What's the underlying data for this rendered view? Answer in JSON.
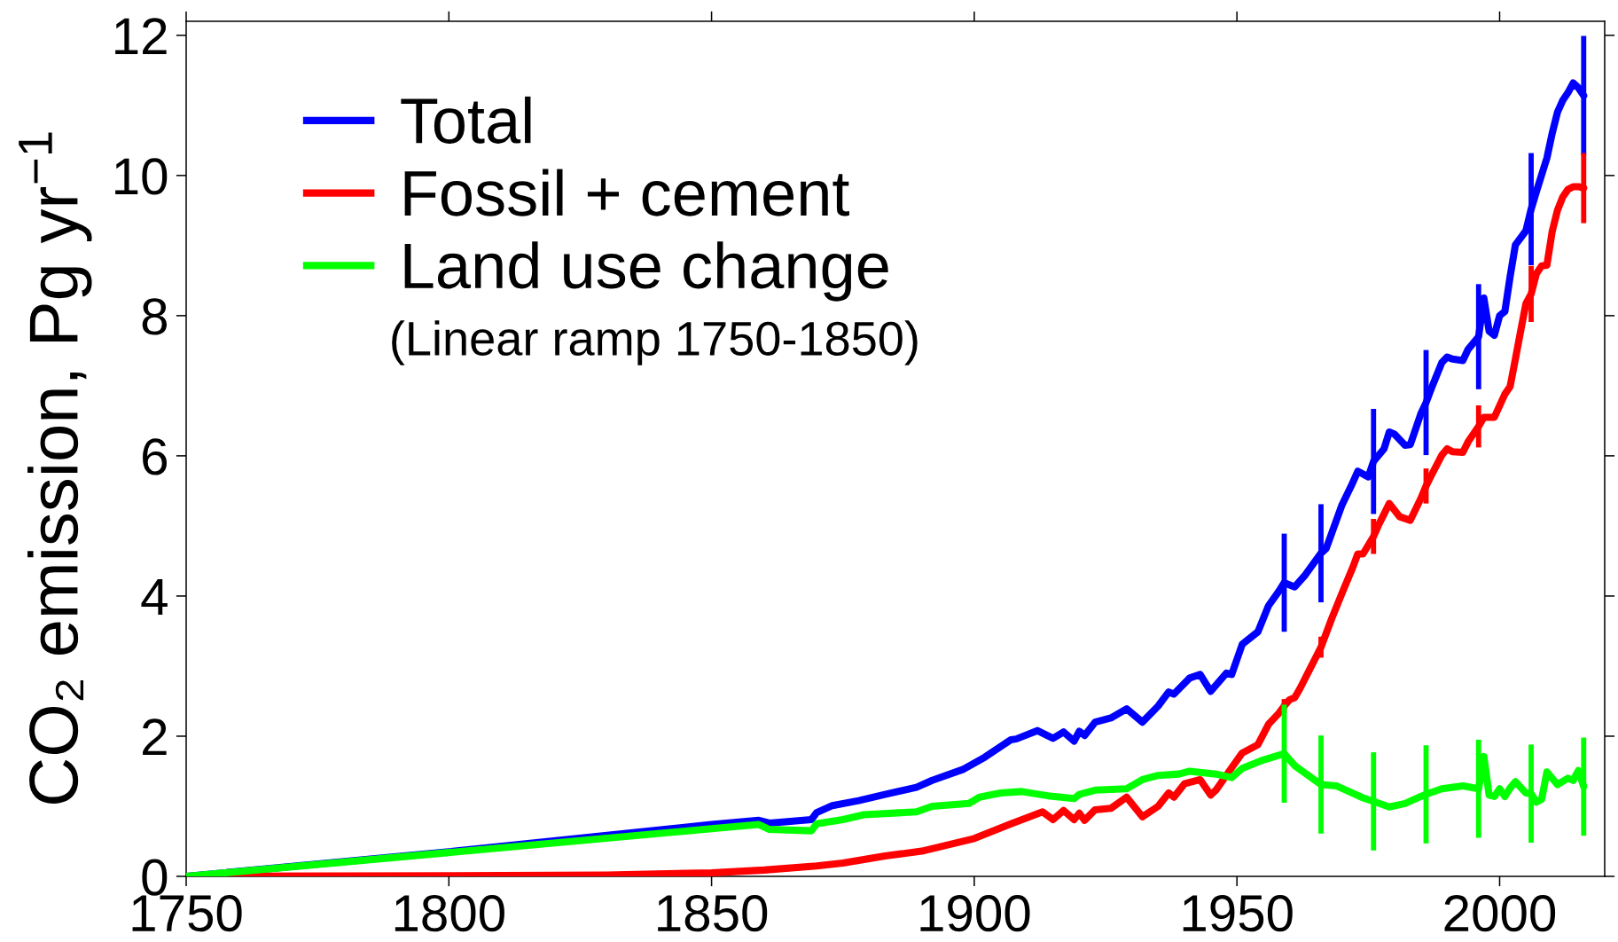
{
  "chart_data": {
    "type": "line",
    "ylabel": "CO₂ emission, Pg yr$^{−1}$",
    "annotations": [
      "(Linear ramp 1750-1850)"
    ],
    "xlim": [
      1750,
      2020
    ],
    "ylim": [
      0,
      12.2
    ],
    "xticks": [
      1750,
      1800,
      1850,
      1900,
      1950,
      2000
    ],
    "yticks": [
      0,
      2,
      4,
      6,
      8,
      10,
      12
    ],
    "legend": "top left",
    "series": [
      {
        "name": "Total",
        "color": "#0000ff",
        "x": [
          1750,
          1800,
          1850,
          1859,
          1861,
          1869,
          1870,
          1873,
          1878,
          1883,
          1889,
          1892,
          1898,
          1902,
          1907,
          1908,
          1912,
          1915,
          1917,
          1919,
          1920,
          1921,
          1923,
          1926,
          1929,
          1932,
          1935,
          1937,
          1938,
          1941,
          1943,
          1945,
          1948,
          1949,
          1951,
          1954,
          1956,
          1958,
          1959,
          1961,
          1963,
          1966,
          1967,
          1970,
          1972,
          1973,
          1975,
          1976,
          1978,
          1979,
          1980,
          1982,
          1983,
          1985,
          1986,
          1987,
          1989,
          1990,
          1991,
          1993,
          1994,
          1996,
          1997,
          1998,
          1999,
          2000,
          2001,
          2002,
          2003,
          2005,
          2006,
          2007,
          2009,
          2010,
          2011,
          2012,
          2013,
          2014,
          2015,
          2016
        ],
        "values": [
          0,
          0.35,
          0.74,
          0.8,
          0.76,
          0.81,
          0.91,
          1.01,
          1.08,
          1.17,
          1.27,
          1.37,
          1.53,
          1.7,
          1.95,
          1.96,
          2.08,
          1.97,
          2.06,
          1.93,
          2.07,
          2.01,
          2.2,
          2.26,
          2.39,
          2.2,
          2.43,
          2.63,
          2.6,
          2.83,
          2.88,
          2.64,
          2.9,
          2.88,
          3.31,
          3.49,
          3.86,
          4.07,
          4.19,
          4.13,
          4.3,
          4.61,
          4.68,
          5.3,
          5.61,
          5.78,
          5.7,
          5.92,
          6.1,
          6.34,
          6.31,
          6.15,
          6.16,
          6.6,
          6.76,
          6.96,
          7.33,
          7.41,
          7.38,
          7.36,
          7.52,
          7.7,
          8.25,
          7.78,
          7.72,
          8.0,
          8.06,
          8.56,
          9.01,
          9.21,
          9.52,
          9.77,
          10.25,
          10.6,
          10.9,
          11.07,
          11.18,
          11.32,
          11.25,
          11.14
        ],
        "errors": [
          null,
          null,
          null,
          null,
          null,
          null,
          null,
          null,
          null,
          null,
          null,
          null,
          null,
          null,
          null,
          null,
          null,
          null,
          null,
          null,
          null,
          null,
          null,
          null,
          null,
          null,
          null,
          null,
          null,
          null,
          null,
          null,
          null,
          null,
          null,
          null,
          null,
          null,
          0.7,
          null,
          null,
          0.7,
          null,
          null,
          null,
          null,
          null,
          0.75,
          null,
          null,
          null,
          null,
          null,
          null,
          0.75,
          null,
          null,
          null,
          null,
          null,
          null,
          0.75,
          null,
          null,
          null,
          null,
          null,
          null,
          null,
          null,
          0.8,
          null,
          null,
          null,
          null,
          null,
          null,
          null,
          null,
          0.85
        ]
      },
      {
        "name": "Fossil + cement",
        "color": "#ff0000",
        "x": [
          1750,
          1800,
          1830,
          1850,
          1860,
          1870,
          1875,
          1883,
          1890,
          1900,
          1907,
          1913,
          1915,
          1917,
          1919,
          1920,
          1921,
          1923,
          1926,
          1929,
          1932,
          1935,
          1937,
          1938,
          1940,
          1943,
          1945,
          1946,
          1949,
          1951,
          1954,
          1956,
          1958,
          1959,
          1960,
          1961,
          1962,
          1966,
          1968,
          1970,
          1972,
          1973,
          1974,
          1976,
          1977,
          1979,
          1981,
          1983,
          1985,
          1986,
          1987,
          1989,
          1990,
          1991,
          1993,
          1994,
          1996,
          1997,
          1999,
          2001,
          2002,
          2003,
          2004,
          2005,
          2006,
          2007,
          2008,
          2009,
          2010,
          2011,
          2012,
          2013,
          2014,
          2015,
          2016
        ],
        "values": [
          0,
          0.01,
          0.02,
          0.05,
          0.09,
          0.15,
          0.19,
          0.29,
          0.36,
          0.54,
          0.75,
          0.92,
          0.81,
          0.94,
          0.81,
          0.9,
          0.8,
          0.95,
          0.97,
          1.13,
          0.85,
          1.0,
          1.19,
          1.13,
          1.32,
          1.38,
          1.16,
          1.23,
          1.55,
          1.76,
          1.88,
          2.17,
          2.33,
          2.43,
          2.52,
          2.55,
          2.68,
          3.27,
          3.67,
          4.04,
          4.4,
          4.6,
          4.6,
          4.85,
          5.02,
          5.32,
          5.13,
          5.08,
          5.39,
          5.57,
          5.72,
          6.01,
          6.1,
          6.06,
          6.05,
          6.2,
          6.42,
          6.55,
          6.55,
          6.88,
          6.99,
          7.38,
          7.78,
          8.17,
          8.31,
          8.6,
          8.71,
          8.72,
          9.2,
          9.5,
          9.69,
          9.8,
          9.84,
          9.84,
          9.82
        ],
        "errors": [
          null,
          null,
          null,
          null,
          null,
          null,
          null,
          null,
          null,
          null,
          null,
          null,
          null,
          null,
          null,
          null,
          null,
          null,
          null,
          null,
          null,
          null,
          null,
          null,
          null,
          null,
          null,
          null,
          null,
          null,
          null,
          null,
          null,
          0.1,
          null,
          null,
          null,
          0.15,
          null,
          null,
          null,
          null,
          null,
          0.25,
          null,
          null,
          null,
          null,
          null,
          0.25,
          null,
          null,
          null,
          null,
          null,
          null,
          0.3,
          null,
          null,
          null,
          null,
          null,
          null,
          null,
          0.4,
          null,
          null,
          null,
          null,
          null,
          null,
          null,
          null,
          null,
          0.5
        ]
      },
      {
        "name": "Land use change",
        "color": "#00ff00",
        "x": [
          1750,
          1800,
          1850,
          1859,
          1861,
          1869,
          1870,
          1875,
          1879,
          1889,
          1892,
          1899,
          1901,
          1905,
          1909,
          1914,
          1919,
          1920,
          1923,
          1929,
          1932,
          1935,
          1939,
          1941,
          1946,
          1949,
          1951,
          1955,
          1959,
          1961,
          1966,
          1969,
          1974,
          1976,
          1979,
          1982,
          1985,
          1986,
          1989,
          1993,
          1996,
          1997,
          1998,
          1999,
          2000,
          2001,
          2002,
          2003,
          2005,
          2006,
          2007,
          2008,
          2009,
          2011,
          2013,
          2014,
          2015,
          2016
        ],
        "values": [
          0,
          0.34,
          0.68,
          0.74,
          0.67,
          0.65,
          0.75,
          0.81,
          0.88,
          0.92,
          1.0,
          1.04,
          1.13,
          1.19,
          1.21,
          1.15,
          1.11,
          1.17,
          1.23,
          1.25,
          1.38,
          1.44,
          1.46,
          1.5,
          1.46,
          1.41,
          1.54,
          1.66,
          1.75,
          1.58,
          1.31,
          1.29,
          1.12,
          1.07,
          0.99,
          1.04,
          1.14,
          1.17,
          1.25,
          1.29,
          1.25,
          1.71,
          1.16,
          1.14,
          1.25,
          1.14,
          1.26,
          1.35,
          1.19,
          1.18,
          1.06,
          1.1,
          1.49,
          1.31,
          1.4,
          1.37,
          1.51,
          1.28
        ],
        "errors": [
          null,
          null,
          null,
          null,
          null,
          null,
          null,
          null,
          null,
          null,
          null,
          null,
          null,
          null,
          null,
          null,
          null,
          null,
          null,
          null,
          null,
          null,
          null,
          null,
          null,
          null,
          null,
          null,
          0.7,
          null,
          0.7,
          null,
          null,
          0.7,
          null,
          null,
          null,
          0.7,
          null,
          null,
          0.7,
          null,
          null,
          null,
          null,
          null,
          null,
          null,
          null,
          0.7,
          null,
          null,
          null,
          null,
          null,
          null,
          null,
          0.7
        ]
      }
    ]
  }
}
